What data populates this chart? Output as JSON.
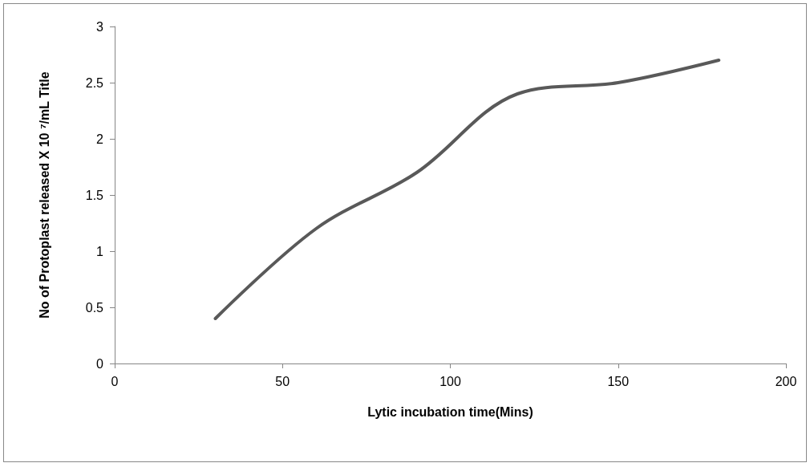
{
  "chart_data": {
    "type": "line",
    "xlabel": "Lytic incubation time(Mins)",
    "ylabel": "No of Protoplast released X 10 ⁷/mL Title",
    "x": [
      30,
      60,
      90,
      120,
      150,
      180
    ],
    "series": [
      {
        "color": "#595959",
        "values": [
          0.4,
          1.2,
          1.7,
          2.4,
          2.5,
          2.7
        ]
      }
    ],
    "xlim": [
      0,
      200
    ],
    "xticks": [
      0,
      50,
      100,
      150,
      200
    ],
    "ylim": [
      0,
      3
    ],
    "yticks": [
      0,
      0.5,
      1,
      1.5,
      2,
      2.5,
      3
    ],
    "grid": false,
    "marker": "none",
    "line_style": "solid"
  }
}
